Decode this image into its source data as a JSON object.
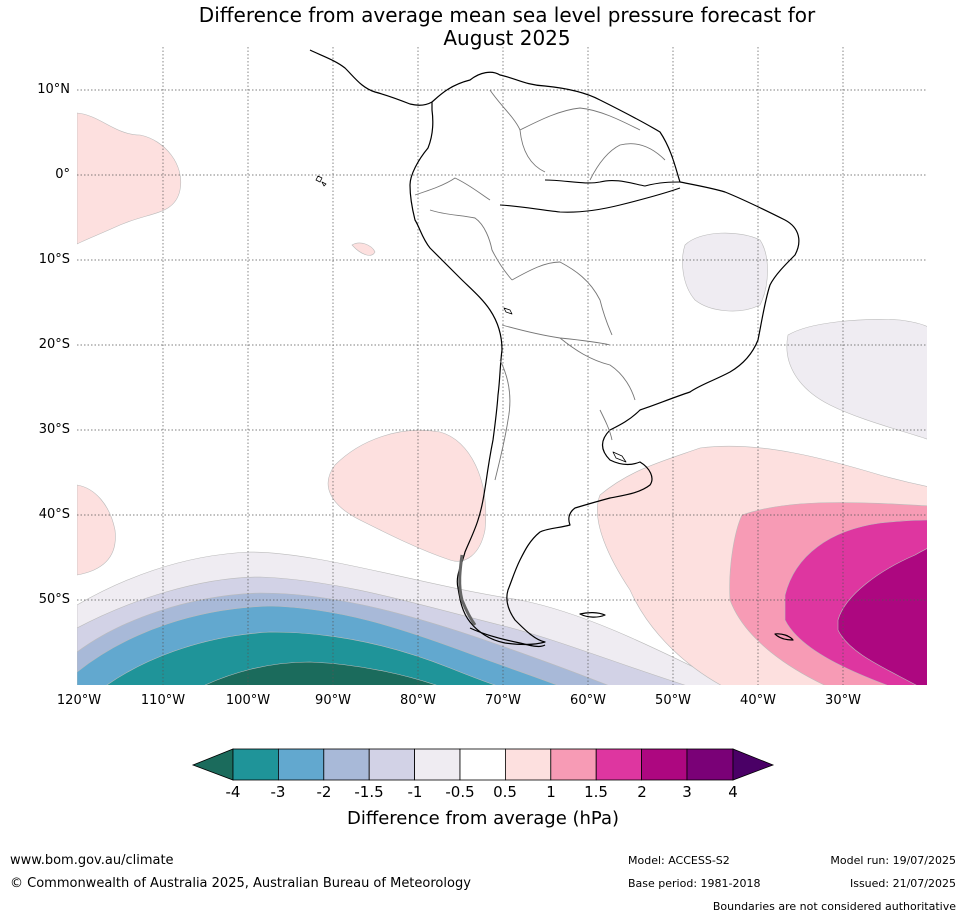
{
  "title_line1": "Difference from average mean sea level pressure forecast for",
  "title_line2": "August 2025",
  "lat_labels": [
    "10°N",
    "0°",
    "10°S",
    "20°S",
    "30°S",
    "40°S",
    "50°S"
  ],
  "lon_labels": [
    "120°W",
    "110°W",
    "100°W",
    "90°W",
    "80°W",
    "70°W",
    "60°W",
    "50°W",
    "40°W",
    "30°W"
  ],
  "colorbar": {
    "ticks": [
      "-4",
      "-3",
      "-2",
      "-1.5",
      "-1",
      "-0.5",
      "0.5",
      "1",
      "1.5",
      "2",
      "3",
      "4"
    ],
    "colors": [
      "#1b6b5c",
      "#1f9499",
      "#62a8cf",
      "#a8b9d8",
      "#d2d2e6",
      "#efecf2",
      "#ffffff",
      "#fde0df",
      "#f79bb5",
      "#de36a0",
      "#ad0780",
      "#7a0177",
      "#4a0066"
    ],
    "label": "Difference from average (hPa)"
  },
  "footer": {
    "website": "www.bom.gov.au/climate",
    "copyright": "© Commonwealth of Australia 2025, Australian Bureau of Meteorology",
    "model": "Model: ACCESS-S2",
    "base_period": "Base period: 1981-2018",
    "model_run": "Model run: 19/07/2025",
    "issued": "Issued: 21/07/2025",
    "disclaimer": "Boundaries are not considered authoritative"
  }
}
